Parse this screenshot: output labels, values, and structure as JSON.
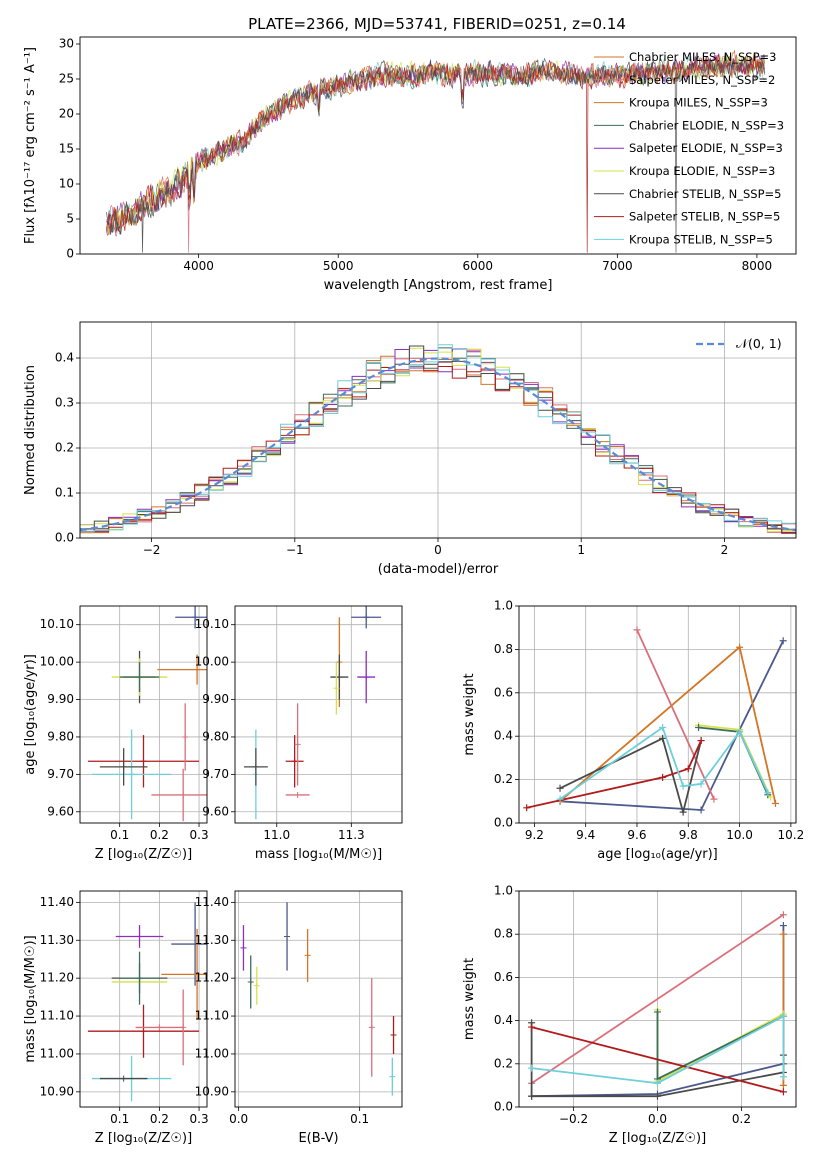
{
  "colors": {
    "grid": "#b0b0b0",
    "normal": "#5b8bd6",
    "series": [
      "#4a5a8a",
      "#d8707c",
      "#d37524",
      "#3d6e5a",
      "#8a2fbf",
      "#d5e14a",
      "#4a4a4a",
      "#b01c1c",
      "#6ccfd9"
    ]
  },
  "chart_data": [
    {
      "id": "spectrum",
      "type": "line",
      "title": "PLATE=2366, MJD=53741, FIBERID=0251, z=0.14",
      "xlabel": "wavelength [Angstrom, rest frame]",
      "ylabel": "Flux [fλ10⁻¹⁷ erg cm⁻² s⁻¹ A⁻¹]",
      "xlim": [
        3150,
        8280
      ],
      "ylim": [
        0,
        31
      ],
      "xticks": [
        4000,
        5000,
        6000,
        7000,
        8000
      ],
      "yticks": [
        0,
        5,
        10,
        15,
        20,
        25,
        30
      ],
      "legend": "top-right",
      "legend_entries": [
        "Chabrier MILES, N_SSP=3",
        "Salpeter MILES, N_SSP=2",
        "Kroupa MILES, N_SSP=3",
        "Chabrier ELODIE, N_SSP=3",
        "Salpeter ELODIE, N_SSP=3",
        "Kroupa ELODIE, N_SSP=3",
        "Chabrier STELIB, N_SSP=5",
        "Salpeter STELIB, N_SSP=5",
        "Kroupa STELIB, N_SSP=5"
      ],
      "legend_colors": [
        "#d37524",
        "#d8707c",
        "#d37524",
        "#3d6e5a",
        "#8a2fbf",
        "#d5e14a",
        "#4a4a4a",
        "#b01c1c",
        "#6ccfd9"
      ],
      "data_trend": {
        "x": [
          3350,
          3500,
          3650,
          3800,
          3950,
          4100,
          4300,
          4500,
          4700,
          4900,
          5100,
          5300,
          5500,
          5700,
          5900,
          6100,
          6300,
          6500,
          6700,
          6900,
          7100,
          7300,
          7500,
          7700,
          7900,
          8050
        ],
        "y": [
          4.5,
          5.5,
          7.5,
          9,
          12,
          14,
          16,
          20,
          22,
          23.5,
          24.5,
          25.5,
          25.5,
          26,
          25.5,
          26,
          25.5,
          26,
          25.5,
          25.5,
          25.5,
          26,
          26.5,
          27,
          27,
          27
        ]
      }
    },
    {
      "id": "residuals",
      "type": "line",
      "xlabel": "(data-model)/error",
      "ylabel": "Normed distribution",
      "xlim": [
        -2.5,
        2.5
      ],
      "ylim": [
        0,
        0.48
      ],
      "xticks": [
        -2,
        -1,
        0,
        1,
        2
      ],
      "yticks": [
        0.0,
        0.1,
        0.2,
        0.3,
        0.4
      ],
      "legend": "top-right",
      "legend_entries": [
        "𝒩(0, 1)"
      ]
    },
    {
      "id": "age_vs_Z",
      "type": "scatter",
      "xlabel": "Z [log₁₀(Z/Z☉)]",
      "ylabel": "age  [log₁₀(age/yr)]",
      "xlim": [
        0.0,
        0.32
      ],
      "ylim": [
        9.57,
        10.15
      ],
      "xticks": [
        0.1,
        0.2,
        0.3
      ],
      "yticks": [
        9.6,
        9.7,
        9.8,
        9.9,
        10.0,
        10.1
      ],
      "points": [
        {
          "x": 0.29,
          "y": 10.12,
          "xerr": 0.05,
          "yerr": 0.03,
          "c": 0
        },
        {
          "x": 0.295,
          "y": 9.98,
          "xerr": 0.1,
          "yerr": 0.04,
          "c": 2
        },
        {
          "x": 0.15,
          "y": 9.96,
          "xerr": 0.04,
          "yerr": 0.07,
          "c": 6
        },
        {
          "x": 0.15,
          "y": 9.96,
          "xerr": 0.07,
          "yerr": 0.05,
          "c": 5
        },
        {
          "x": 0.15,
          "y": 9.96,
          "xerr": 0.05,
          "yerr": 0.04,
          "c": 3
        },
        {
          "x": 0.16,
          "y": 9.735,
          "xerr": 0.14,
          "yerr": 0.07,
          "c": 7
        },
        {
          "x": 0.13,
          "y": 9.7,
          "xerr": 0.1,
          "yerr": 0.12,
          "c": 8
        },
        {
          "x": 0.11,
          "y": 9.72,
          "xerr": 0.06,
          "yerr": 0.05,
          "c": 6
        },
        {
          "x": 0.26,
          "y": 9.645,
          "xerr": 0.08,
          "yerr": 0.07,
          "c": 1
        },
        {
          "x": 0.265,
          "y": 9.8,
          "xerr": 0.0,
          "yerr": 0.09,
          "c": 1
        }
      ]
    },
    {
      "id": "age_vs_mass",
      "type": "scatter",
      "xlabel": "mass [log₁₀(M/M☉)]",
      "ylabel": "",
      "xlim": [
        10.86,
        11.42
      ],
      "ylim": [
        9.57,
        10.15
      ],
      "xticks": [
        11.0,
        11.25
      ],
      "yticks": [
        9.6,
        9.7,
        9.8,
        9.9,
        10.0,
        10.1
      ],
      "points": [
        {
          "x": 11.3,
          "y": 10.12,
          "xerr": 0.05,
          "yerr": 0.03,
          "c": 0
        },
        {
          "x": 11.21,
          "y": 10.0,
          "xerr": 0.0,
          "yerr": 0.12,
          "c": 2
        },
        {
          "x": 11.3,
          "y": 9.96,
          "xerr": 0.03,
          "yerr": 0.07,
          "c": 4
        },
        {
          "x": 11.21,
          "y": 9.96,
          "xerr": 0.03,
          "yerr": 0.06,
          "c": 6
        },
        {
          "x": 11.2,
          "y": 9.93,
          "xerr": 0.0,
          "yerr": 0.07,
          "c": 5
        },
        {
          "x": 11.06,
          "y": 9.735,
          "xerr": 0.03,
          "yerr": 0.07,
          "c": 7
        },
        {
          "x": 10.93,
          "y": 9.7,
          "xerr": 0.0,
          "yerr": 0.12,
          "c": 8
        },
        {
          "x": 10.93,
          "y": 9.72,
          "xerr": 0.04,
          "yerr": 0.05,
          "c": 6
        },
        {
          "x": 11.07,
          "y": 9.645,
          "xerr": 0.04,
          "yerr": 0.0,
          "c": 1
        },
        {
          "x": 11.07,
          "y": 9.78,
          "xerr": 0.0,
          "yerr": 0.11,
          "c": 1
        }
      ]
    },
    {
      "id": "weight_vs_age",
      "type": "line",
      "xlabel": "age  [log₁₀(age/yr)]",
      "ylabel": "mass weight",
      "xlim": [
        9.14,
        10.22
      ],
      "ylim": [
        0,
        1.0
      ],
      "xticks": [
        9.2,
        9.4,
        9.6,
        9.8,
        10.0,
        10.2
      ],
      "yticks": [
        0.0,
        0.2,
        0.4,
        0.6,
        0.8,
        1.0
      ],
      "series": [
        {
          "c": 0,
          "x": [
            10.17,
            10.0,
            9.85,
            9.3
          ],
          "y": [
            0.84,
            0.43,
            0.06,
            0.1
          ]
        },
        {
          "c": 2,
          "x": [
            9.3,
            10.0,
            10.14
          ],
          "y": [
            0.1,
            0.81,
            0.09
          ]
        },
        {
          "c": 1,
          "x": [
            9.6,
            9.9
          ],
          "y": [
            0.89,
            0.11
          ]
        },
        {
          "c": 5,
          "x": [
            9.84,
            10.0,
            10.12
          ],
          "y": [
            0.45,
            0.43,
            0.12
          ]
        },
        {
          "c": 3,
          "x": [
            9.84,
            10.0,
            10.11
          ],
          "y": [
            0.44,
            0.42,
            0.13
          ]
        },
        {
          "c": 6,
          "x": [
            9.3,
            9.7,
            9.78,
            9.85
          ],
          "y": [
            0.16,
            0.39,
            0.05,
            0.38
          ]
        },
        {
          "c": 7,
          "x": [
            9.17,
            9.7,
            9.8,
            9.85
          ],
          "y": [
            0.07,
            0.21,
            0.25,
            0.38
          ]
        },
        {
          "c": 8,
          "x": [
            9.3,
            9.7,
            9.78,
            9.85,
            10.0,
            10.11
          ],
          "y": [
            0.11,
            0.44,
            0.17,
            0.18,
            0.42,
            0.14
          ]
        }
      ]
    },
    {
      "id": "mass_vs_Z",
      "type": "scatter",
      "xlabel": "Z [log₁₀(Z/Z☉)]",
      "ylabel": "mass [log₁₀(M/M☉)]",
      "xlim": [
        0.0,
        0.32
      ],
      "ylim": [
        10.86,
        11.43
      ],
      "xticks": [
        0.1,
        0.2,
        0.3
      ],
      "yticks": [
        10.9,
        11.0,
        11.1,
        11.2,
        11.3,
        11.4
      ],
      "points": [
        {
          "x": 0.29,
          "y": 11.29,
          "xerr": 0.06,
          "yerr": 0.11,
          "c": 0
        },
        {
          "x": 0.295,
          "y": 11.21,
          "xerr": 0.09,
          "yerr": 0.12,
          "c": 2
        },
        {
          "x": 0.15,
          "y": 11.31,
          "xerr": 0.06,
          "yerr": 0.03,
          "c": 4
        },
        {
          "x": 0.15,
          "y": 11.2,
          "xerr": 0.07,
          "yerr": 0.04,
          "c": 6
        },
        {
          "x": 0.15,
          "y": 11.19,
          "xerr": 0.07,
          "yerr": 0.0,
          "c": 5
        },
        {
          "x": 0.15,
          "y": 11.2,
          "xerr": 0.05,
          "yerr": 0.07,
          "c": 3
        },
        {
          "x": 0.16,
          "y": 11.06,
          "xerr": 0.14,
          "yerr": 0.07,
          "c": 7
        },
        {
          "x": 0.2,
          "y": 11.07,
          "xerr": 0.06,
          "yerr": 0.0,
          "c": 1
        },
        {
          "x": 0.26,
          "y": 11.07,
          "xerr": 0.0,
          "yerr": 0.1,
          "c": 1
        },
        {
          "x": 0.13,
          "y": 10.935,
          "xerr": 0.1,
          "yerr": 0.06,
          "c": 8
        },
        {
          "x": 0.11,
          "y": 10.935,
          "xerr": 0.06,
          "yerr": 0.0,
          "c": 6
        }
      ]
    },
    {
      "id": "mass_vs_ebv",
      "type": "scatter",
      "xlabel": "E(B-V)",
      "ylabel": "",
      "xlim": [
        -0.003,
        0.135
      ],
      "ylim": [
        10.86,
        11.43
      ],
      "xticks": [
        0.0,
        0.1
      ],
      "yticks": [
        10.9,
        11.0,
        11.1,
        11.2,
        11.3,
        11.4
      ],
      "points": [
        {
          "x": 0.04,
          "y": 11.31,
          "xerr": 0.0,
          "yerr": 0.09,
          "c": 0
        },
        {
          "x": 0.057,
          "y": 11.26,
          "xerr": 0.0,
          "yerr": 0.07,
          "c": 2
        },
        {
          "x": 0.004,
          "y": 11.28,
          "xerr": 0.0,
          "yerr": 0.06,
          "c": 4
        },
        {
          "x": 0.01,
          "y": 11.19,
          "xerr": 0.0,
          "yerr": 0.07,
          "c": 3
        },
        {
          "x": 0.015,
          "y": 11.18,
          "xerr": 0.0,
          "yerr": 0.05,
          "c": 5
        },
        {
          "x": 0.11,
          "y": 11.07,
          "xerr": 0.0,
          "yerr": 0.13,
          "c": 1
        },
        {
          "x": 0.128,
          "y": 11.05,
          "xerr": 0.0,
          "yerr": 0.05,
          "c": 7
        },
        {
          "x": 0.127,
          "y": 10.94,
          "xerr": 0.0,
          "yerr": 0.05,
          "c": 8
        }
      ]
    },
    {
      "id": "weight_vs_Z",
      "type": "line",
      "xlabel": "Z [log₁₀(Z/Z☉)]",
      "ylabel": "mass weight",
      "xlim": [
        -0.33,
        0.33
      ],
      "ylim": [
        0,
        1.0
      ],
      "xticks": [
        -0.2,
        0.0,
        0.2
      ],
      "yticks": [
        0.0,
        0.2,
        0.4,
        0.6,
        0.8,
        1.0
      ],
      "series": [
        {
          "c": 0,
          "x": [
            -0.3,
            0.0,
            0.3,
            0.3
          ],
          "y": [
            0.05,
            0.06,
            0.2,
            0.84
          ]
        },
        {
          "c": 2,
          "x": [
            0.3,
            0.3
          ],
          "y": [
            0.8,
            0.1
          ]
        },
        {
          "c": 1,
          "x": [
            -0.3,
            0.3
          ],
          "y": [
            0.11,
            0.89
          ]
        },
        {
          "c": 5,
          "x": [
            0.0,
            0.0,
            0.3
          ],
          "y": [
            0.45,
            0.12,
            0.43
          ]
        },
        {
          "c": 3,
          "x": [
            0.0,
            0.0,
            0.3
          ],
          "y": [
            0.44,
            0.13,
            0.42
          ]
        },
        {
          "c": 6,
          "x": [
            -0.3,
            -0.3,
            0.0,
            0.3,
            0.3
          ],
          "y": [
            0.39,
            0.05,
            0.05,
            0.16,
            0.24
          ]
        },
        {
          "c": 7,
          "x": [
            -0.3,
            0.3
          ],
          "y": [
            0.37,
            0.07
          ]
        },
        {
          "c": 8,
          "x": [
            -0.3,
            0.0,
            0.3,
            0.3
          ],
          "y": [
            0.18,
            0.11,
            0.42,
            0.14
          ]
        }
      ]
    }
  ]
}
